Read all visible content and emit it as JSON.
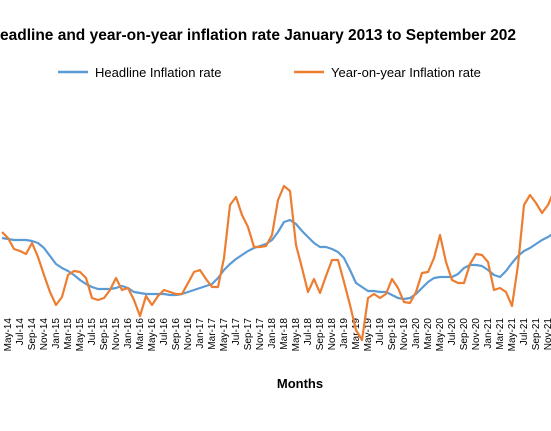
{
  "chart_data": {
    "type": "line",
    "title": "eadline and year-on-year inflation rate January 2013 to September 202",
    "x_label": "Months",
    "categories": [
      null,
      "May-14",
      null,
      "Jul-14",
      null,
      "Sep-14",
      null,
      "Nov-14",
      null,
      "Jan-15",
      null,
      "Mar-15",
      null,
      "May-15",
      null,
      "Jul-15",
      null,
      "Sep-15",
      null,
      "Nov-15",
      null,
      "Jan-16",
      null,
      "Mar-16",
      null,
      "May-16",
      null,
      "Jul-16",
      null,
      "Sep-16",
      null,
      "Nov-16",
      null,
      "Jan-17",
      null,
      "Mar-17",
      null,
      "May-17",
      null,
      "Jul-17",
      null,
      "Sep-17",
      null,
      "Nov-17",
      null,
      "Jan-18",
      null,
      "Mar-18",
      null,
      "May-18",
      null,
      "Jul-18",
      null,
      "Sep-18",
      null,
      "Nov-18",
      null,
      "Jan-19",
      null,
      "Mar-19",
      null,
      "May-19",
      null,
      "Jul-19",
      null,
      "Sep-19",
      null,
      "Nov-19",
      null,
      "Jan-20",
      null,
      "Mar-20",
      null,
      "May-20",
      null,
      "Jul-20",
      null,
      "Sep-20",
      null,
      "Nov-20",
      null,
      "Jan-21",
      null,
      "Mar-21",
      null,
      "May-21",
      null,
      "Jul-21",
      null,
      "Sep-21",
      null,
      "Nov-21",
      null
    ],
    "series": [
      {
        "name": "Headline Inflation rate",
        "color": "#5b9bd5",
        "values": [
          11.2,
          11.1,
          11.0,
          11.0,
          11.0,
          10.9,
          10.7,
          10.2,
          9.4,
          8.6,
          8.2,
          7.9,
          7.5,
          7.0,
          6.6,
          6.3,
          6.1,
          6.1,
          6.1,
          6.2,
          6.4,
          6.2,
          5.8,
          5.7,
          5.6,
          5.6,
          5.6,
          5.6,
          5.5,
          5.5,
          5.6,
          5.8,
          6.0,
          6.2,
          6.4,
          6.6,
          7.2,
          8.0,
          8.6,
          9.1,
          9.5,
          9.9,
          10.2,
          10.4,
          10.6,
          11.0,
          11.8,
          12.8,
          13.0,
          12.6,
          11.9,
          11.3,
          10.7,
          10.3,
          10.3,
          10.1,
          9.8,
          9.2,
          8.0,
          6.7,
          6.3,
          5.9,
          5.9,
          5.8,
          5.8,
          5.5,
          5.2,
          5.1,
          5.2,
          5.6,
          6.2,
          6.8,
          7.2,
          7.3,
          7.3,
          7.3,
          7.6,
          8.2,
          8.5,
          8.5,
          8.4,
          8.0,
          7.5,
          7.3,
          7.9,
          8.7,
          9.4,
          9.9,
          10.2,
          10.6,
          11.0,
          11.3,
          11.7
        ]
      },
      {
        "name": "Year-on-year Inflation rate",
        "color": "#ed7d31",
        "values": [
          11.8,
          11.2,
          10.1,
          9.9,
          9.6,
          10.7,
          9.3,
          7.5,
          5.8,
          4.5,
          5.3,
          7.5,
          7.9,
          7.8,
          7.2,
          5.2,
          5.0,
          5.2,
          6.0,
          7.2,
          6.0,
          6.2,
          5.0,
          3.4,
          5.4,
          4.5,
          5.4,
          6.0,
          5.8,
          5.6,
          5.6,
          6.7,
          7.8,
          8.0,
          7.1,
          6.3,
          6.3,
          9.2,
          14.5,
          15.3,
          13.5,
          12.3,
          10.3,
          10.3,
          10.4,
          11.5,
          15.0,
          16.4,
          15.9,
          10.5,
          8.2,
          5.8,
          7.1,
          5.7,
          7.4,
          9.0,
          9.0,
          6.8,
          4.5,
          2.0,
          1.0,
          5.2,
          5.6,
          5.2,
          5.6,
          7.1,
          6.2,
          4.8,
          4.7,
          5.8,
          7.7,
          7.8,
          9.2,
          11.5,
          8.8,
          7.0,
          6.7,
          6.7,
          8.6,
          9.6,
          9.5,
          8.8,
          6.0,
          6.2,
          5.8,
          4.4,
          8.5,
          14.5,
          15.5,
          14.7,
          13.7,
          14.5,
          15.9
        ]
      }
    ],
    "ylim": [
      0,
      29
    ]
  }
}
